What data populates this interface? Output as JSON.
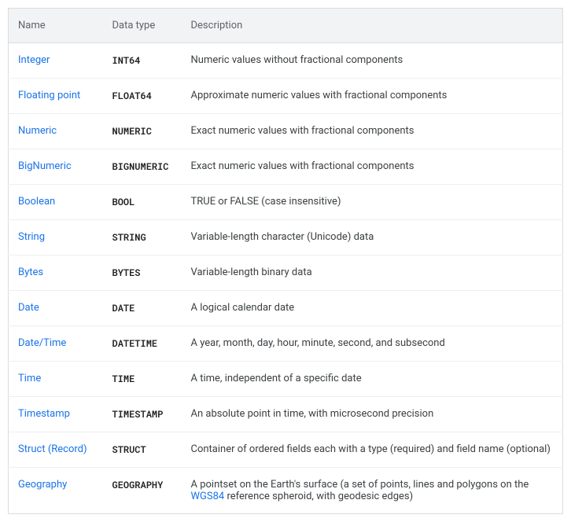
{
  "columns": [
    "Name",
    "Data type",
    "Description"
  ],
  "colors": {
    "header_bg": "#f1f3f4",
    "header_text": "#5f6368",
    "border": "#dadce0",
    "row_divider": "#eceff1",
    "link": "#1a73e8",
    "text": "#3c4043",
    "code_text": "#202124",
    "background": "#ffffff"
  },
  "rows": [
    {
      "name": "Integer",
      "type": "INT64",
      "desc_before": "Numeric values without fractional components"
    },
    {
      "name": "Floating point",
      "type": "FLOAT64",
      "desc_before": "Approximate numeric values with fractional components"
    },
    {
      "name": "Numeric",
      "type": "NUMERIC",
      "desc_before": "Exact numeric values with fractional components"
    },
    {
      "name": "BigNumeric",
      "type": "BIGNUMERIC",
      "desc_before": "Exact numeric values with fractional components"
    },
    {
      "name": "Boolean",
      "type": "BOOL",
      "desc_before": "TRUE or FALSE (case insensitive)"
    },
    {
      "name": "String",
      "type": "STRING",
      "desc_before": "Variable-length character (Unicode) data"
    },
    {
      "name": "Bytes",
      "type": "BYTES",
      "desc_before": "Variable-length binary data"
    },
    {
      "name": "Date",
      "type": "DATE",
      "desc_before": "A logical calendar date"
    },
    {
      "name": "Date/Time",
      "type": "DATETIME",
      "desc_before": "A year, month, day, hour, minute, second, and subsecond"
    },
    {
      "name": "Time",
      "type": "TIME",
      "desc_before": "A time, independent of a specific date"
    },
    {
      "name": "Timestamp",
      "type": "TIMESTAMP",
      "desc_before": "An absolute point in time, with microsecond precision"
    },
    {
      "name": "Struct (Record)",
      "type": "STRUCT",
      "desc_before": "Container of ordered fields each with a type (required) and field name (optional)"
    },
    {
      "name": "Geography",
      "type": "GEOGRAPHY",
      "desc_before": "A pointset on the Earth's surface (a set of points, lines and polygons on the ",
      "desc_link": "WGS84",
      "desc_after": " reference spheroid, with geodesic edges)"
    }
  ]
}
